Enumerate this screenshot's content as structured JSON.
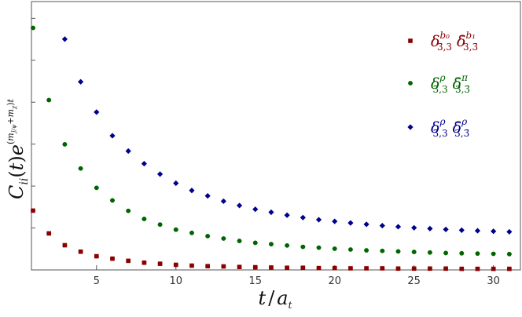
{
  "chart_data": {
    "type": "scatter",
    "xlabel": "t / a_t",
    "ylabel": "C_ii(t) e^{(m_{J/ψ}+m_χ)t}",
    "xlim": [
      0.9,
      31.7
    ],
    "ylim": [
      0,
      100
    ],
    "x_ticks": [
      5,
      10,
      15,
      20,
      25,
      30
    ],
    "y_ticks_count": 7,
    "grid": false,
    "legend_position": "top-right",
    "series": [
      {
        "name": "δ^{b0}_{3̄,3} δ̄^{b1}_{3,3̄}",
        "legend_main": "δ",
        "legend_sup": "b₀",
        "legend_sub": "3̄,3",
        "legend_main2": "δ̄",
        "legend_sup2": "b₁",
        "legend_sub2": "3,3̄",
        "color": "#8b0000",
        "marker": "square",
        "x": [
          1,
          2,
          3,
          4,
          5,
          6,
          7,
          8,
          9,
          10,
          11,
          12,
          13,
          14,
          15,
          16,
          17,
          18,
          19,
          20,
          21,
          22,
          23,
          24,
          25,
          26,
          27,
          28,
          29,
          30,
          31
        ],
        "y": [
          22.1,
          13.6,
          9.2,
          6.8,
          5.1,
          4.2,
          3.4,
          2.7,
          2.3,
          1.9,
          1.6,
          1.4,
          1.3,
          1.1,
          1.0,
          0.9,
          0.8,
          0.8,
          0.7,
          0.7,
          0.6,
          0.6,
          0.6,
          0.5,
          0.5,
          0.5,
          0.5,
          0.4,
          0.4,
          0.4,
          0.4
        ]
      },
      {
        "name": "δ^{ρ}_{3̄,3} δ̄^{π}_{3,3̄}",
        "legend_main": "δ",
        "legend_sup": "ρ",
        "legend_sub": "3̄,3",
        "legend_main2": "δ̄",
        "legend_sup2": "π",
        "legend_sub2": "3,3̄",
        "color": "#006400",
        "marker": "circle",
        "x": [
          1,
          2,
          3,
          4,
          5,
          6,
          7,
          8,
          9,
          10,
          11,
          12,
          13,
          14,
          15,
          16,
          17,
          18,
          19,
          20,
          21,
          22,
          23,
          24,
          25,
          26,
          27,
          28,
          29,
          30,
          31
        ],
        "y": [
          90.2,
          63.3,
          46.8,
          37.8,
          30.6,
          25.9,
          22.0,
          19.0,
          16.9,
          15.0,
          13.8,
          12.6,
          11.7,
          10.8,
          10.1,
          9.6,
          9.1,
          8.6,
          8.3,
          7.9,
          7.6,
          7.3,
          7.1,
          6.9,
          6.7,
          6.5,
          6.3,
          6.2,
          6.1,
          6.0,
          5.9
        ]
      },
      {
        "name": "δ^{ρ}_{3̄,3} δ̄^{ρ}_{3,3̄}",
        "legend_main": "δ",
        "legend_sup": "ρ",
        "legend_sub": "3̄,3",
        "legend_main2": "δ̄",
        "legend_sup2": "ρ",
        "legend_sub2": "3,3̄",
        "color": "#00008b",
        "marker": "diamond",
        "x": [
          3,
          4,
          5,
          6,
          7,
          8,
          9,
          10,
          11,
          12,
          13,
          14,
          15,
          16,
          17,
          18,
          19,
          20,
          21,
          22,
          23,
          24,
          25,
          26,
          27,
          28,
          29,
          30,
          31
        ],
        "y": [
          86.0,
          70.1,
          58.8,
          50.0,
          44.3,
          39.6,
          35.7,
          32.3,
          29.6,
          27.6,
          25.6,
          24.0,
          22.6,
          21.5,
          20.4,
          19.5,
          18.7,
          18.1,
          17.5,
          17.0,
          16.5,
          16.1,
          15.7,
          15.4,
          15.1,
          14.8,
          14.6,
          14.4,
          14.2
        ]
      }
    ]
  }
}
